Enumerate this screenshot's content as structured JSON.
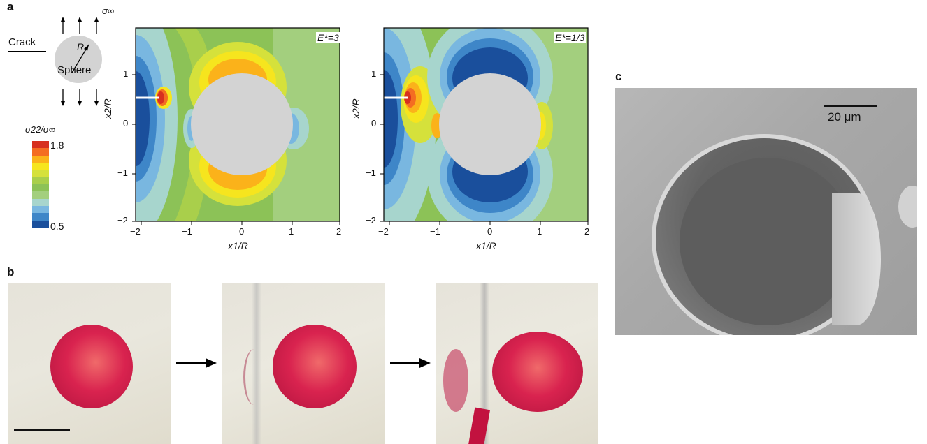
{
  "figure": {
    "panel_labels": {
      "a": "a",
      "b": "b",
      "c": "c"
    },
    "schematic": {
      "crack_label": "Crack",
      "radius_label": "R",
      "sphere_label": "Sphere",
      "sigma_label": "σ∞"
    },
    "colorbar": {
      "title": "σ22/σ∞",
      "max_label": "1.8",
      "min_label": "0.5",
      "colors": [
        "#d7301f",
        "#f46d22",
        "#fbb21a",
        "#f6e51e",
        "#d5e13b",
        "#a9cf4b",
        "#8cc257",
        "#a3cf7e",
        "#a7d5cd",
        "#79b7e0",
        "#3e86c8",
        "#1a4f9c"
      ]
    },
    "plots": [
      {
        "annotation": "E*=3",
        "xlabel": "x1/R",
        "ylabel": "x2/R",
        "xticks": [
          "−2",
          "−1",
          "0",
          "1",
          "2"
        ],
        "yticks": [
          "1",
          "0",
          "−1",
          "−2"
        ]
      },
      {
        "annotation": "E*=1/3",
        "xlabel": "x1/R",
        "ylabel": "x2/R",
        "xticks": [
          "−2",
          "−1",
          "0",
          "1",
          "2"
        ],
        "yticks": [
          "1",
          "0",
          "−1",
          "−2"
        ]
      }
    ],
    "sem": {
      "scale_label": "20 μm"
    }
  },
  "chart_data": [
    {
      "type": "heatmap",
      "title": "E*=3",
      "xlabel": "x1/R",
      "ylabel": "x2/R",
      "xlim": [
        -2,
        2
      ],
      "ylim": [
        -2,
        1.8
      ],
      "colorbar_range": [
        0.5,
        1.8
      ],
      "sphere": {
        "center": [
          0,
          0
        ],
        "radius": 1
      },
      "crack": {
        "x": [
          -2,
          -1.65
        ],
        "y": 0.5
      }
    },
    {
      "type": "heatmap",
      "title": "E*=1/3",
      "xlabel": "x1/R",
      "ylabel": "x2/R",
      "xlim": [
        -2,
        2
      ],
      "ylim": [
        -2,
        1.8
      ],
      "colorbar_range": [
        0.5,
        1.8
      ],
      "sphere": {
        "center": [
          0,
          0
        ],
        "radius": 1
      },
      "crack": {
        "x": [
          -2,
          -1.65
        ],
        "y": 0.5
      }
    }
  ]
}
